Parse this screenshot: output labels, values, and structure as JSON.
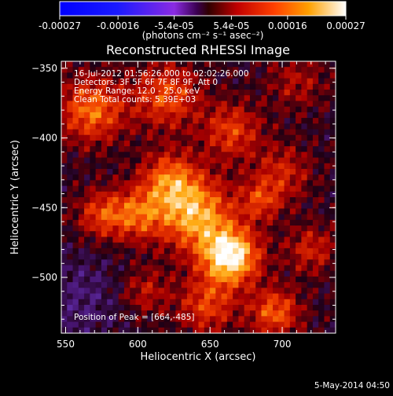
{
  "colorbar": {
    "tick_labels": [
      "-0.00027",
      "-0.00016",
      "-5.4e-05",
      "5.4e-05",
      "0.00016",
      "0.00027"
    ],
    "tick_values": [
      -0.00027,
      -0.00016,
      -5.4e-05,
      5.4e-05,
      0.00016,
      0.00027
    ],
    "range": [
      -0.00027,
      0.00027
    ],
    "units_label": "(photons cm⁻² s⁻¹ asec⁻²)"
  },
  "chart_data": {
    "type": "heatmap",
    "title": "Reconstructed RHESSI Image",
    "xlabel": "Heliocentric X (arcsec)",
    "ylabel": "Heliocentric Y (arcsec)",
    "xlim": [
      547,
      737
    ],
    "ylim": [
      -540,
      -345
    ],
    "x_ticks": [
      550,
      600,
      650,
      700
    ],
    "y_ticks": [
      -350,
      -400,
      -450,
      -500
    ],
    "info_lines": [
      "16-Jul-2012 01:56:26.000 to 02:02:26.000",
      "Detectors: 3F 5F 6F 7F 8F 9F, Att 0",
      "Energy Range: 12.0 - 25.0 keV",
      "Clean    Total counts: 5.39E+03"
    ],
    "peak_label": "Position of Peak = [664,-485]",
    "peak": [
      664,
      -485
    ],
    "sources": [
      {
        "x": 664,
        "y": -485,
        "amp": 1.0,
        "sigma": 14
      },
      {
        "x": 640,
        "y": -455,
        "amp": 0.75,
        "sigma": 18
      },
      {
        "x": 622,
        "y": -430,
        "amp": 0.55,
        "sigma": 14
      },
      {
        "x": 600,
        "y": -455,
        "amp": 0.5,
        "sigma": 13
      },
      {
        "x": 568,
        "y": -380,
        "amp": 0.6,
        "sigma": 16
      },
      {
        "x": 575,
        "y": -455,
        "amp": 0.45,
        "sigma": 12
      },
      {
        "x": 620,
        "y": -370,
        "amp": 0.5,
        "sigma": 16
      },
      {
        "x": 665,
        "y": -395,
        "amp": 0.45,
        "sigma": 14
      },
      {
        "x": 700,
        "y": -425,
        "amp": 0.35,
        "sigma": 14
      },
      {
        "x": 720,
        "y": -480,
        "amp": 0.35,
        "sigma": 12
      },
      {
        "x": 695,
        "y": -525,
        "amp": 0.55,
        "sigma": 12
      },
      {
        "x": 648,
        "y": -520,
        "amp": 0.45,
        "sigma": 14
      },
      {
        "x": 605,
        "y": -510,
        "amp": 0.3,
        "sigma": 12
      },
      {
        "x": 710,
        "y": -360,
        "amp": 0.25,
        "sigma": 14
      },
      {
        "x": 560,
        "y": -515,
        "amp": -0.2,
        "sigma": 22
      },
      {
        "x": 685,
        "y": -445,
        "amp": 0.4,
        "sigma": 10
      }
    ]
  },
  "footer_date": "5-May-2014 04:50"
}
